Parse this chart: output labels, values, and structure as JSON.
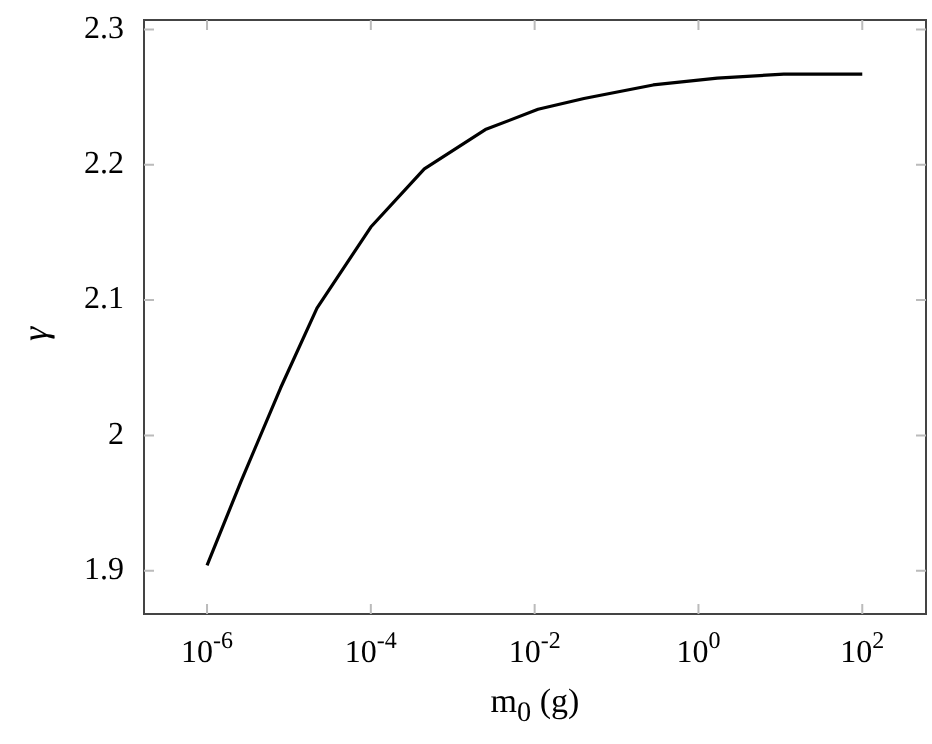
{
  "chart_data": {
    "type": "line",
    "xlabel": "m$_{0}$ (g)",
    "ylabel": "γ",
    "log": "x",
    "grid": false,
    "legend": false,
    "marker": "none",
    "line_style": "solid",
    "xlim": [
      1.7e-07,
      600
    ],
    "ylim": [
      1.868,
      2.307
    ],
    "xticks": [
      {
        "value": 1e-06,
        "label": "10$^{-6}$"
      },
      {
        "value": 0.0001,
        "label": "10$^{-4}$"
      },
      {
        "value": 0.01,
        "label": "10$^{-2}$"
      },
      {
        "value": 1,
        "label": "10$^{0}$"
      },
      {
        "value": 100,
        "label": "10$^{2}$"
      }
    ],
    "yticks": [
      1.9,
      2,
      2.1,
      2.2,
      2.3
    ],
    "x": [
      1e-06,
      2.6e-06,
      7.9e-06,
      2.2e-05,
      0.0001,
      0.00045,
      0.0025,
      0.011,
      0.04,
      0.28,
      1.7,
      11,
      100
    ],
    "series": [
      {
        "color": "#000000",
        "values": [
          1.904,
          1.966,
          2.035,
          2.094,
          2.154,
          2.197,
          2.226,
          2.241,
          2.249,
          2.259,
          2.264,
          2.267,
          2.267
        ]
      }
    ]
  }
}
